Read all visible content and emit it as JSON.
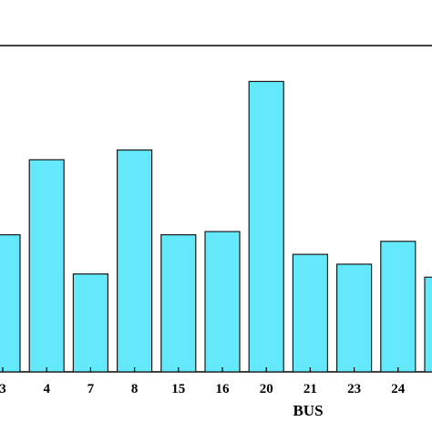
{
  "chart_data": {
    "type": "bar",
    "categories": [
      "3",
      "4",
      "7",
      "8",
      "15",
      "16",
      "20",
      "21",
      "23",
      "24",
      ""
    ],
    "values": [
      42,
      65,
      30,
      68,
      42,
      43,
      89,
      36,
      33,
      40,
      29
    ],
    "title": "",
    "xlabel": "BUS",
    "ylabel": "",
    "ylim": [
      0,
      100
    ],
    "grid": false,
    "legend": "none",
    "colors": {
      "bar_fill": "#63e8fc",
      "bar_stroke": "#1a1a1a",
      "axis": "#000000"
    }
  }
}
